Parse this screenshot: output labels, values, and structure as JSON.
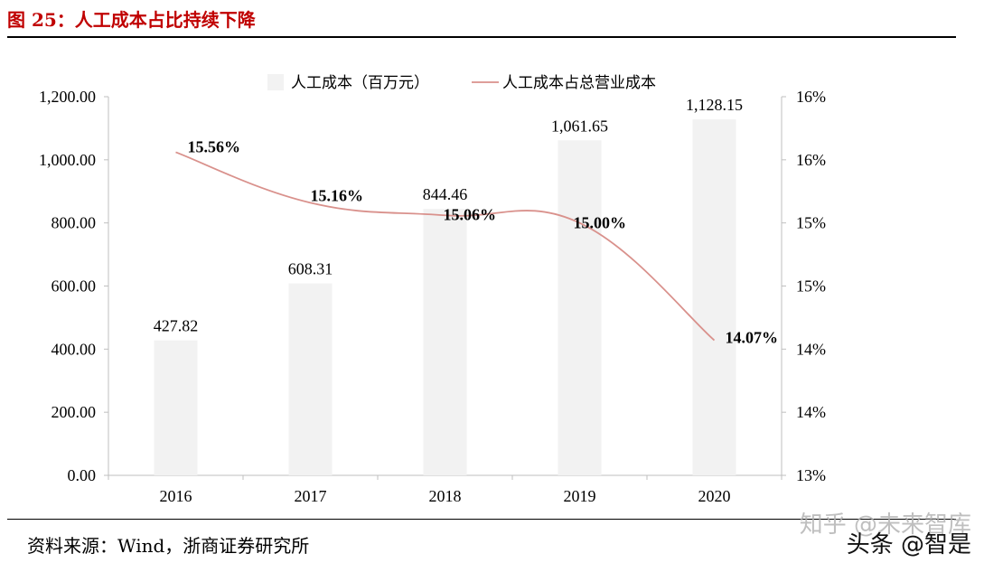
{
  "figure": {
    "title": "图 25：人工成本占比持续下降",
    "source": "资料来源：Wind，浙商证券研究所",
    "watermark": "知乎 @未来智库",
    "watermark2": "头条 @智是"
  },
  "chart_data": {
    "type": "bar",
    "categories": [
      "2016",
      "2017",
      "2018",
      "2019",
      "2020"
    ],
    "series": [
      {
        "name": "人工成本（百万元）",
        "type": "bar",
        "axis": "left",
        "color": "#f2f2f2",
        "values": [
          427.82,
          608.31,
          844.46,
          1061.65,
          1128.15
        ],
        "labels": [
          "427.82",
          "608.31",
          "844.46",
          "1,061.65",
          "1,128.15"
        ]
      },
      {
        "name": "人工成本占总营业成本",
        "type": "line",
        "axis": "right",
        "color": "#d9918c",
        "values": [
          15.56,
          15.16,
          15.06,
          15.0,
          14.07
        ],
        "labels": [
          "15.56%",
          "15.16%",
          "15.06%",
          "15.00%",
          "14.07%"
        ]
      }
    ],
    "y_left": {
      "ylim": [
        0,
        1200
      ],
      "ticks": [
        0,
        200,
        400,
        600,
        800,
        1000,
        1200
      ],
      "tick_labels": [
        "0.00",
        "200.00",
        "400.00",
        "600.00",
        "800.00",
        "1,000.00",
        "1,200.00"
      ]
    },
    "y_right": {
      "ylim": [
        13,
        16
      ],
      "ticks": [
        13,
        13.5,
        14,
        14.5,
        15,
        15.5,
        16
      ],
      "tick_labels": [
        "13%",
        "14%",
        "14%",
        "15%",
        "15%",
        "16%",
        "16%"
      ]
    },
    "legend_position": "top-center",
    "grid": false
  }
}
